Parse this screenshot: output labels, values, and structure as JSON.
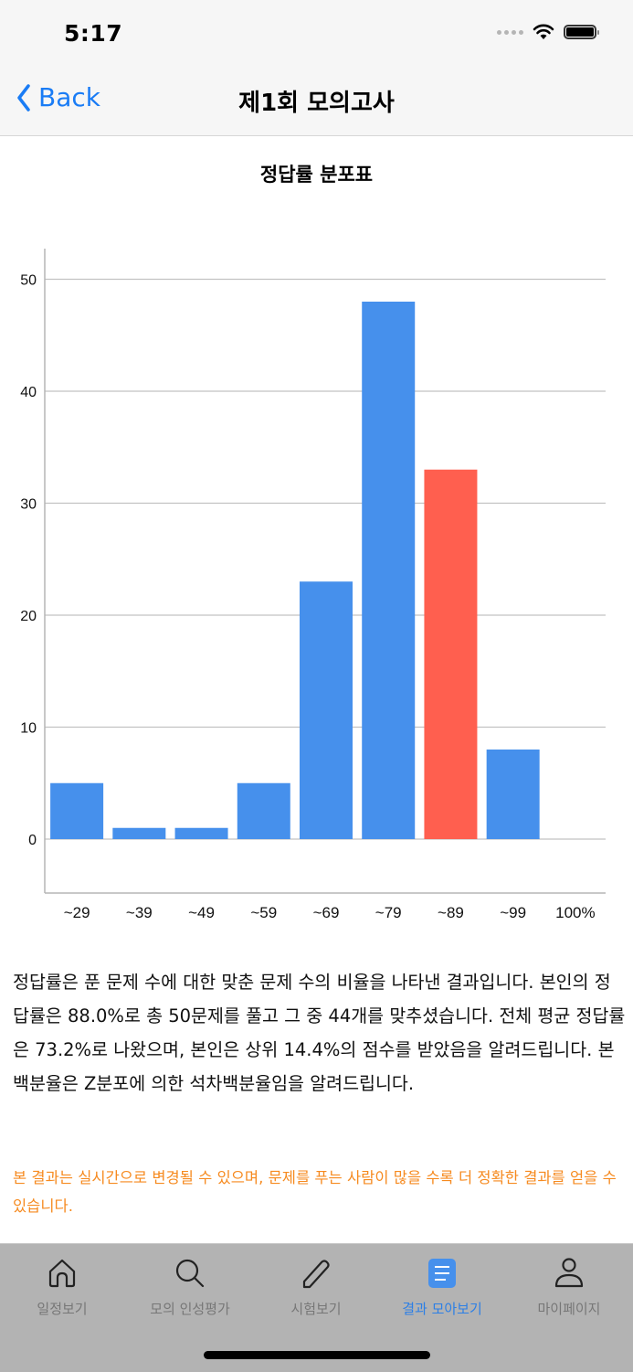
{
  "status_bar": {
    "time": "5:17"
  },
  "nav": {
    "back_label": "Back",
    "title": "제1회 모의고사"
  },
  "chart_data": {
    "type": "bar",
    "title": "정답률 분포표",
    "categories": [
      "~29",
      "~39",
      "~49",
      "~59",
      "~69",
      "~79",
      "~89",
      "~99",
      "100%"
    ],
    "values": [
      5,
      1,
      1,
      5,
      23,
      48,
      33,
      8,
      0
    ],
    "highlight_index": 6,
    "colors": {
      "default": "#4690ec",
      "highlight": "#ff5f4f",
      "grid": "#c2c2c2"
    },
    "yticks": [
      0,
      10,
      20,
      30,
      40,
      50
    ],
    "ylim": [
      -5,
      55
    ],
    "xlabel": "",
    "ylabel": "",
    "grid": true,
    "legend": "none"
  },
  "description": "정답률은 푼 문제 수에 대한 맞춘 문제 수의 비율을 나타낸 결과입니다. 본인의 정답률은 88.0%로 총 50문제를 풀고 그 중 44개를 맞추셨습니다. 전체 평균 정답률은 73.2%로 나왔으며, 본인은 상위 14.4%의 점수를 받았음을 알려드립니다. 본 백분율은 Z분포에 의한 석차백분율임을 알려드립니다.",
  "note": "본 결과는 실시간으로 변경될 수 있으며, 문제를 푸는 사람이 많을 수록 더 정확한 결과를 얻을 수 있습니다.",
  "tabbar": {
    "items": [
      {
        "label": "일정보기",
        "icon": "home-icon"
      },
      {
        "label": "모의 인성평가",
        "icon": "search-icon"
      },
      {
        "label": "시험보기",
        "icon": "pencil-icon"
      },
      {
        "label": "결과 모아보기",
        "icon": "list-icon",
        "active": true
      },
      {
        "label": "마이페이지",
        "icon": "person-icon"
      }
    ]
  }
}
